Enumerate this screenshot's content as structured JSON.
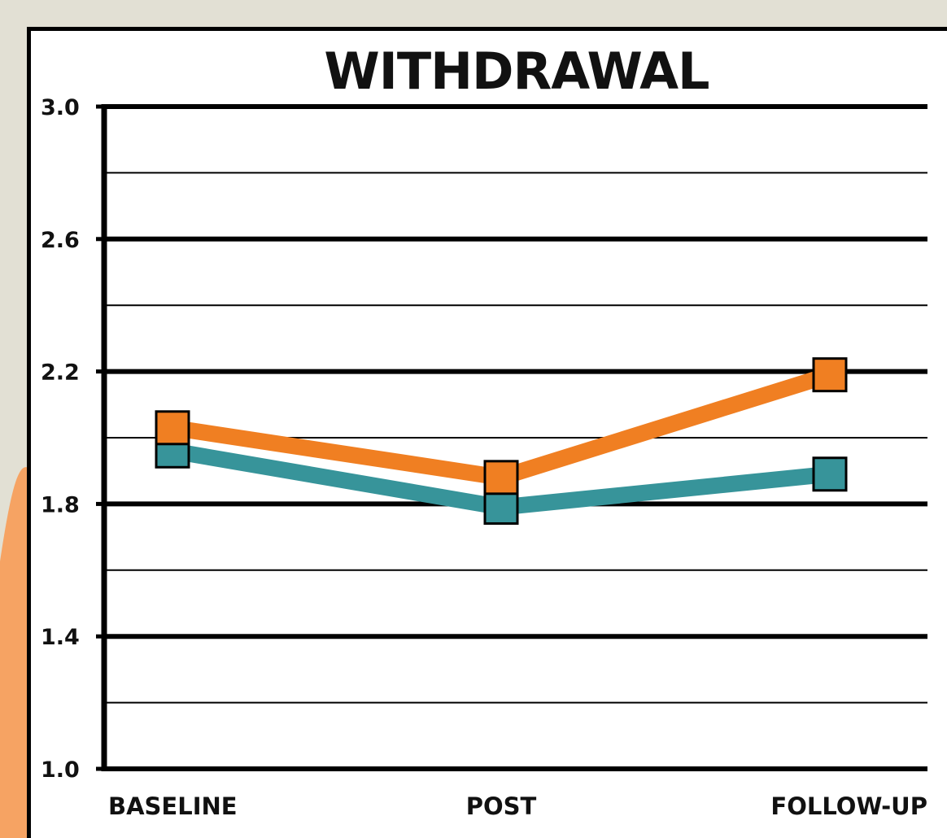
{
  "chart_data": {
    "type": "line",
    "title": "WITHDRAWAL",
    "xlabel": "",
    "ylabel": "",
    "categories": [
      "BASELINE",
      "POST",
      "FOLLOW-UP"
    ],
    "ylim": [
      1.0,
      3.0
    ],
    "yticks": [
      "1.0",
      "1.4",
      "1.8",
      "2.2",
      "2.6",
      "3.0"
    ],
    "grid": true,
    "legend": "none",
    "series": [
      {
        "color": "#f07f22",
        "values": [
          2.03,
          1.88,
          2.19
        ]
      },
      {
        "color": "#37949a",
        "values": [
          1.96,
          1.79,
          1.89
        ]
      }
    ]
  }
}
